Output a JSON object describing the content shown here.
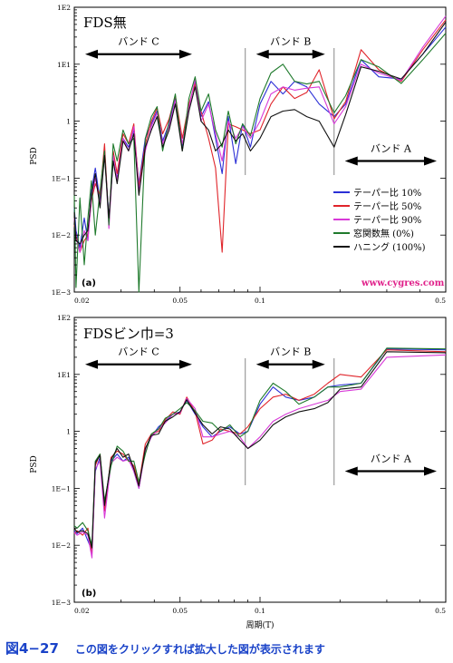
{
  "caption": {
    "figure_number": "図4−27",
    "link_text": "この図をクリックすれば拡大した図が表示されます"
  },
  "watermark": "www.cygres.com",
  "axis": {
    "xlabel": "周期(T)",
    "ylabel": "PSD"
  },
  "colors": {
    "blue": "#2b2fd6",
    "red": "#e0242a",
    "magenta": "#d839d8",
    "green": "#1f7a2c",
    "black": "#111111"
  },
  "chart_data": [
    {
      "type": "line",
      "title": "FDS無",
      "panel_tag": "(a)",
      "xscale": "log",
      "yscale": "log",
      "xlim": [
        0.02,
        0.5
      ],
      "ylim": [
        0.001,
        100
      ],
      "xticks": [
        "0.02",
        "0.05",
        "0.1",
        "0.5"
      ],
      "yticks": [
        "1E2",
        "1E1",
        "1",
        "1E−1",
        "1E−2",
        "1E−3"
      ],
      "band_dividers": [
        0.088,
        0.19
      ],
      "bands": [
        {
          "label": "バンド C",
          "x_from": 0.02,
          "x_to": 0.06,
          "y": 15
        },
        {
          "label": "バンド B",
          "x_from": 0.088,
          "x_to": 0.19,
          "y": 15
        },
        {
          "label": "バンド A",
          "x_from": 0.19,
          "x_to": 0.5,
          "y": 0.2
        }
      ],
      "x": [
        0.0195,
        0.0203,
        0.021,
        0.0218,
        0.0225,
        0.0232,
        0.024,
        0.025,
        0.026,
        0.027,
        0.028,
        0.029,
        0.0305,
        0.032,
        0.0335,
        0.035,
        0.037,
        0.039,
        0.041,
        0.043,
        0.0455,
        0.048,
        0.051,
        0.054,
        0.057,
        0.06,
        0.064,
        0.068,
        0.072,
        0.076,
        0.081,
        0.086,
        0.092,
        0.1,
        0.11,
        0.122,
        0.135,
        0.15,
        0.167,
        0.19,
        0.21,
        0.24,
        0.28,
        0.34,
        0.41,
        0.5
      ],
      "series": [
        {
          "name": "テーパー比 10%",
          "color": "blue",
          "values": [
            0.03,
            0.012,
            0.006,
            0.02,
            0.008,
            0.06,
            0.15,
            0.04,
            0.3,
            0.02,
            0.2,
            0.1,
            0.5,
            0.35,
            0.7,
            0.08,
            0.5,
            0.9,
            1.5,
            0.45,
            0.9,
            2.5,
            0.35,
            1.8,
            5,
            1.2,
            2.2,
            0.5,
            0.12,
            1.2,
            0.18,
            0.9,
            0.35,
            2,
            5,
            3,
            5,
            4,
            2,
            1.2,
            2,
            12,
            6,
            5.5,
            15,
            45
          ]
        },
        {
          "name": "テーパー比 50%",
          "color": "red",
          "values": [
            0.015,
            0.01,
            0.005,
            0.008,
            0.01,
            0.04,
            0.08,
            0.05,
            0.4,
            0.015,
            0.3,
            0.12,
            0.6,
            0.4,
            0.9,
            0.07,
            0.4,
            1.0,
            1.7,
            0.6,
            1.1,
            2.8,
            0.5,
            2.0,
            4.5,
            1.5,
            0.5,
            0.15,
            0.005,
            0.9,
            0.8,
            0.7,
            0.6,
            0.7,
            2,
            4,
            2.5,
            3.2,
            8,
            1.1,
            2.2,
            18,
            8,
            5,
            18,
            60
          ]
        },
        {
          "name": "テーパー比 90%",
          "color": "magenta",
          "values": [
            0.02,
            0.009,
            0.005,
            0.012,
            0.008,
            0.045,
            0.1,
            0.035,
            0.3,
            0.013,
            0.25,
            0.09,
            0.5,
            0.3,
            0.8,
            0.06,
            0.3,
            0.8,
            1.4,
            0.4,
            0.8,
            2.3,
            0.4,
            1.7,
            5.5,
            1.0,
            2.0,
            0.6,
            0.2,
            1.0,
            0.5,
            0.8,
            0.5,
            1.0,
            3,
            4,
            3.5,
            3.8,
            4,
            0.9,
            1.8,
            10,
            7,
            5.2,
            20,
            70
          ]
        },
        {
          "name": "窓関数無 (0%)",
          "color": "green",
          "values": [
            0.05,
            0.0012,
            0.045,
            0.003,
            0.02,
            0.09,
            0.01,
            0.06,
            0.3,
            0.015,
            0.4,
            0.2,
            0.7,
            0.4,
            0.5,
            0.001,
            0.5,
            1.2,
            1.8,
            0.3,
            1.0,
            3.0,
            0.3,
            2.5,
            6,
            1.5,
            3.0,
            0.7,
            0.35,
            1.5,
            0.4,
            0.9,
            0.55,
            2.5,
            7,
            10,
            5,
            4.5,
            5,
            1.4,
            2.8,
            12,
            9,
            4.6,
            12,
            35
          ]
        },
        {
          "name": "ハニング (100%)",
          "color": "black",
          "values": [
            0.025,
            0.008,
            0.007,
            0.01,
            0.012,
            0.05,
            0.12,
            0.03,
            0.25,
            0.02,
            0.2,
            0.08,
            0.45,
            0.3,
            0.6,
            0.05,
            0.35,
            0.7,
            1.2,
            0.35,
            0.7,
            2.0,
            0.3,
            1.5,
            4,
            1.0,
            0.7,
            0.3,
            0.4,
            0.7,
            0.45,
            0.6,
            0.3,
            0.5,
            1.2,
            1.5,
            1.6,
            1.2,
            1.0,
            0.35,
            1.3,
            9,
            7.5,
            5.5,
            15,
            55
          ]
        }
      ]
    },
    {
      "type": "line",
      "title": "FDSビン巾=3",
      "panel_tag": "(b)",
      "xscale": "log",
      "yscale": "log",
      "xlim": [
        0.02,
        0.5
      ],
      "ylim": [
        0.001,
        100
      ],
      "xticks": [
        "0.02",
        "0.05",
        "0.1",
        "0.5"
      ],
      "yticks": [
        "1E2",
        "1E1",
        "1",
        "1E−1",
        "1E−2",
        "1E−3"
      ],
      "band_dividers": [
        0.088,
        0.19
      ],
      "bands": [
        {
          "label": "バンド C",
          "x_from": 0.02,
          "x_to": 0.06,
          "y": 15
        },
        {
          "label": "バンド B",
          "x_from": 0.088,
          "x_to": 0.19,
          "y": 15
        },
        {
          "label": "バンド A",
          "x_from": 0.19,
          "x_to": 0.5,
          "y": 0.2
        }
      ],
      "x": [
        0.0195,
        0.0205,
        0.0215,
        0.0225,
        0.0233,
        0.024,
        0.025,
        0.026,
        0.0275,
        0.029,
        0.0305,
        0.032,
        0.0335,
        0.035,
        0.037,
        0.039,
        0.0415,
        0.044,
        0.047,
        0.05,
        0.053,
        0.057,
        0.061,
        0.066,
        0.071,
        0.077,
        0.084,
        0.09,
        0.1,
        0.112,
        0.125,
        0.14,
        0.16,
        0.18,
        0.2,
        0.24,
        0.3,
        0.5
      ],
      "series": [
        {
          "name": "テーパー比 10%",
          "color": "blue",
          "values": [
            0.018,
            0.016,
            0.02,
            0.012,
            0.008,
            0.2,
            0.35,
            0.05,
            0.3,
            0.4,
            0.3,
            0.35,
            0.2,
            0.1,
            0.5,
            0.8,
            1.2,
            1.5,
            2.0,
            2.2,
            3.5,
            2.0,
            1.2,
            0.8,
            1.0,
            1.2,
            0.9,
            1.0,
            3,
            6,
            4,
            3.5,
            4,
            6,
            6.5,
            7,
            28,
            27
          ]
        },
        {
          "name": "テーパー比 50%",
          "color": "red",
          "values": [
            0.016,
            0.018,
            0.015,
            0.02,
            0.007,
            0.25,
            0.4,
            0.04,
            0.35,
            0.45,
            0.4,
            0.3,
            0.25,
            0.12,
            0.6,
            0.9,
            1.0,
            1.6,
            2.2,
            2.0,
            4,
            2.2,
            0.6,
            0.7,
            1.1,
            1.0,
            0.9,
            1.2,
            2.5,
            4,
            4.5,
            3.5,
            4.5,
            7,
            10,
            9,
            27,
            25
          ]
        },
        {
          "name": "テーパー比 90%",
          "color": "magenta",
          "values": [
            0.017,
            0.015,
            0.017,
            0.015,
            0.006,
            0.22,
            0.3,
            0.03,
            0.28,
            0.35,
            0.3,
            0.32,
            0.2,
            0.1,
            0.45,
            0.8,
            1.1,
            1.4,
            2.0,
            2.1,
            3.8,
            2.5,
            0.8,
            0.8,
            0.9,
            1.0,
            0.8,
            0.5,
            0.8,
            1.5,
            2,
            2.5,
            3,
            3.5,
            5,
            5.5,
            20,
            22
          ]
        },
        {
          "name": "窓関数無 (0%)",
          "color": "green",
          "values": [
            0.022,
            0.02,
            0.025,
            0.018,
            0.01,
            0.3,
            0.4,
            0.06,
            0.25,
            0.55,
            0.45,
            0.3,
            0.3,
            0.13,
            0.4,
            0.9,
            1.1,
            1.7,
            2.0,
            2.5,
            3.2,
            2.3,
            1.5,
            1.4,
            1.0,
            1.3,
            0.8,
            1.0,
            3.5,
            7,
            5,
            3,
            4,
            6,
            6,
            7,
            29,
            28
          ]
        },
        {
          "name": "ハニング (100%)",
          "color": "black",
          "values": [
            0.02,
            0.017,
            0.018,
            0.016,
            0.009,
            0.28,
            0.38,
            0.05,
            0.32,
            0.5,
            0.35,
            0.4,
            0.22,
            0.11,
            0.5,
            0.85,
            0.9,
            1.5,
            1.8,
            2.2,
            3.6,
            2.1,
            1.3,
            0.9,
            1.2,
            1.1,
            0.7,
            0.5,
            0.7,
            1.3,
            1.8,
            2.2,
            2.5,
            3.2,
            5.5,
            6,
            25,
            24
          ]
        }
      ]
    }
  ]
}
